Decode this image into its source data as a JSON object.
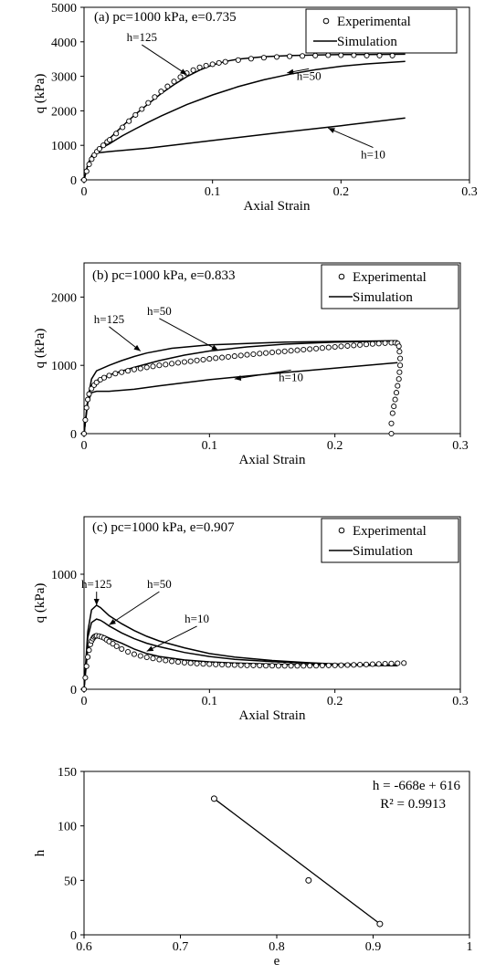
{
  "chart_data": [
    {
      "type": "line",
      "panel": "a",
      "title": "(a) pc=1000 kPa, e=0.735",
      "xlabel": "Axial Strain",
      "ylabel": "q (kPa)",
      "xlim": [
        0,
        0.3
      ],
      "ylim": [
        0,
        5000
      ],
      "xticks": [
        0,
        0.1,
        0.2,
        0.3
      ],
      "yticks": [
        0,
        1000,
        2000,
        3000,
        4000,
        5000
      ],
      "legend": {
        "placement": "top-right",
        "entries": [
          "Experimental",
          "Simulation"
        ]
      },
      "experimental": {
        "name": "Experimental",
        "x": [
          0.0,
          0.002,
          0.004,
          0.006,
          0.008,
          0.01,
          0.012,
          0.015,
          0.018,
          0.02,
          0.025,
          0.03,
          0.035,
          0.04,
          0.045,
          0.05,
          0.055,
          0.06,
          0.065,
          0.07,
          0.075,
          0.08,
          0.085,
          0.09,
          0.095,
          0.1,
          0.105,
          0.11,
          0.12,
          0.13,
          0.14,
          0.15,
          0.16,
          0.17,
          0.18,
          0.19,
          0.2,
          0.21,
          0.22,
          0.23,
          0.24
        ],
        "y": [
          0,
          250,
          450,
          600,
          720,
          820,
          900,
          1000,
          1100,
          1160,
          1340,
          1520,
          1700,
          1880,
          2050,
          2230,
          2400,
          2560,
          2710,
          2850,
          2980,
          3090,
          3180,
          3260,
          3310,
          3350,
          3390,
          3420,
          3470,
          3510,
          3540,
          3560,
          3580,
          3590,
          3600,
          3610,
          3610,
          3610,
          3600,
          3600,
          3600
        ]
      },
      "simulation": [
        {
          "label": "h=125",
          "x": [
            0,
            0.003,
            0.006,
            0.01,
            0.02,
            0.03,
            0.04,
            0.05,
            0.06,
            0.07,
            0.08,
            0.09,
            0.1,
            0.11,
            0.12,
            0.14,
            0.16,
            0.18,
            0.2,
            0.22,
            0.25
          ],
          "y": [
            0,
            450,
            700,
            850,
            1200,
            1560,
            1900,
            2200,
            2500,
            2760,
            2990,
            3180,
            3330,
            3430,
            3500,
            3570,
            3600,
            3620,
            3630,
            3630,
            3640
          ]
        },
        {
          "label": "h=50",
          "x": [
            0,
            0.003,
            0.006,
            0.01,
            0.02,
            0.03,
            0.04,
            0.05,
            0.06,
            0.08,
            0.1,
            0.12,
            0.14,
            0.16,
            0.18,
            0.2,
            0.22,
            0.25
          ],
          "y": [
            0,
            450,
            700,
            850,
            1050,
            1280,
            1480,
            1670,
            1850,
            2180,
            2460,
            2700,
            2900,
            3060,
            3190,
            3290,
            3360,
            3430
          ]
        },
        {
          "label": "h=10",
          "x": [
            0,
            0.003,
            0.006,
            0.01,
            0.02,
            0.05,
            0.1,
            0.15,
            0.2,
            0.25
          ],
          "y": [
            0,
            450,
            680,
            780,
            820,
            920,
            1140,
            1360,
            1570,
            1790
          ]
        }
      ],
      "annotations": [
        {
          "text": "h=125",
          "text_at": [
            0.045,
            4020
          ],
          "arrow_to": [
            0.08,
            3050
          ]
        },
        {
          "text": "h=50",
          "text_at": [
            0.175,
            2900
          ],
          "arrow_to": [
            0.158,
            3100
          ]
        },
        {
          "text": "h=10",
          "text_at": [
            0.225,
            620
          ],
          "arrow_to": [
            0.19,
            1500
          ]
        }
      ]
    },
    {
      "type": "line",
      "panel": "b",
      "title": "(b) pc=1000 kPa, e=0.833",
      "xlabel": "Axial Strain",
      "ylabel": "q (kPa)",
      "xlim": [
        0,
        0.3
      ],
      "ylim": [
        0,
        2500
      ],
      "xticks": [
        0,
        0.1,
        0.2,
        0.3
      ],
      "yticks": [
        0,
        1000,
        2000
      ],
      "legend": {
        "placement": "top-right",
        "entries": [
          "Experimental",
          "Simulation"
        ]
      },
      "experimental": {
        "name": "Experimental",
        "x": [
          0.0,
          0.001,
          0.002,
          0.003,
          0.004,
          0.006,
          0.008,
          0.01,
          0.013,
          0.016,
          0.02,
          0.025,
          0.03,
          0.035,
          0.04,
          0.045,
          0.05,
          0.055,
          0.06,
          0.065,
          0.07,
          0.075,
          0.08,
          0.085,
          0.09,
          0.095,
          0.1,
          0.105,
          0.11,
          0.115,
          0.12,
          0.125,
          0.13,
          0.135,
          0.14,
          0.145,
          0.15,
          0.155,
          0.16,
          0.165,
          0.17,
          0.175,
          0.18,
          0.185,
          0.19,
          0.195,
          0.2,
          0.205,
          0.21,
          0.215,
          0.22,
          0.225,
          0.23,
          0.235,
          0.24,
          0.245,
          0.248,
          0.25,
          0.251,
          0.2515,
          0.252,
          0.252,
          0.2515,
          0.251,
          0.25,
          0.249,
          0.248,
          0.247,
          0.246,
          0.245,
          0.245
        ],
        "y": [
          0,
          200,
          380,
          500,
          580,
          660,
          710,
          750,
          790,
          820,
          850,
          880,
          900,
          920,
          940,
          955,
          970,
          985,
          1000,
          1012,
          1025,
          1037,
          1050,
          1060,
          1072,
          1083,
          1095,
          1105,
          1115,
          1125,
          1135,
          1145,
          1155,
          1163,
          1172,
          1180,
          1190,
          1198,
          1206,
          1214,
          1222,
          1230,
          1238,
          1246,
          1254,
          1262,
          1270,
          1278,
          1285,
          1292,
          1300,
          1307,
          1314,
          1320,
          1326,
          1330,
          1330,
          1320,
          1280,
          1200,
          1100,
          1000,
          900,
          800,
          700,
          600,
          500,
          400,
          300,
          150,
          0
        ]
      },
      "simulation": [
        {
          "label": "h=125",
          "x": [
            0,
            0.003,
            0.006,
            0.01,
            0.02,
            0.03,
            0.04,
            0.05,
            0.07,
            0.1,
            0.13,
            0.16,
            0.2,
            0.25
          ],
          "y": [
            0,
            500,
            800,
            920,
            1000,
            1070,
            1130,
            1180,
            1250,
            1300,
            1320,
            1340,
            1350,
            1360
          ]
        },
        {
          "label": "h=50",
          "x": [
            0,
            0.003,
            0.006,
            0.01,
            0.02,
            0.04,
            0.06,
            0.08,
            0.1,
            0.13,
            0.16,
            0.2,
            0.25
          ],
          "y": [
            0,
            500,
            700,
            780,
            860,
            970,
            1070,
            1150,
            1210,
            1270,
            1310,
            1340,
            1360
          ]
        },
        {
          "label": "h=10",
          "x": [
            0,
            0.003,
            0.006,
            0.01,
            0.02,
            0.04,
            0.06,
            0.1,
            0.15,
            0.2,
            0.25
          ],
          "y": [
            0,
            450,
            600,
            620,
            620,
            650,
            700,
            790,
            880,
            960,
            1040
          ]
        }
      ],
      "annotations": [
        {
          "text": "h=125",
          "text_at": [
            0.02,
            1620
          ],
          "arrow_to": [
            0.045,
            1210
          ]
        },
        {
          "text": "h=50",
          "text_at": [
            0.06,
            1740
          ],
          "arrow_to": [
            0.107,
            1220
          ]
        },
        {
          "text": "h=10",
          "text_at": [
            0.165,
            770
          ],
          "arrow_to": [
            0.12,
            800
          ]
        }
      ]
    },
    {
      "type": "line",
      "panel": "c",
      "title": "(c) pc=1000 kPa, e=0.907",
      "xlabel": "Axial Strain",
      "ylabel": "q (kPa)",
      "xlim": [
        0,
        0.3
      ],
      "ylim": [
        0,
        1500
      ],
      "xticks": [
        0,
        0.1,
        0.2,
        0.3
      ],
      "yticks": [
        0,
        1000
      ],
      "legend": {
        "placement": "top-right",
        "entries": [
          "Experimental",
          "Simulation"
        ]
      },
      "experimental": {
        "name": "Experimental",
        "x": [
          0.0,
          0.001,
          0.002,
          0.003,
          0.004,
          0.005,
          0.006,
          0.007,
          0.008,
          0.009,
          0.01,
          0.012,
          0.014,
          0.016,
          0.018,
          0.02,
          0.023,
          0.026,
          0.03,
          0.035,
          0.04,
          0.045,
          0.05,
          0.055,
          0.06,
          0.065,
          0.07,
          0.075,
          0.08,
          0.085,
          0.09,
          0.095,
          0.1,
          0.105,
          0.11,
          0.115,
          0.12,
          0.125,
          0.13,
          0.135,
          0.14,
          0.145,
          0.15,
          0.155,
          0.16,
          0.165,
          0.17,
          0.175,
          0.18,
          0.185,
          0.19,
          0.195,
          0.2,
          0.205,
          0.21,
          0.215,
          0.22,
          0.225,
          0.23,
          0.235,
          0.24,
          0.245,
          0.25,
          0.255
        ],
        "y": [
          0,
          100,
          200,
          280,
          340,
          390,
          420,
          440,
          455,
          462,
          465,
          462,
          455,
          445,
          430,
          415,
          395,
          375,
          350,
          325,
          305,
          290,
          278,
          268,
          258,
          250,
          243,
          237,
          232,
          228,
          224,
          221,
          218,
          216,
          214,
          212,
          210,
          209,
          208,
          207,
          206,
          205,
          205,
          204,
          204,
          204,
          204,
          204,
          205,
          205,
          206,
          207,
          208,
          209,
          210,
          212,
          214,
          216,
          218,
          220,
          222,
          224,
          226,
          228
        ]
      },
      "simulation": [
        {
          "label": "h=125",
          "x": [
            0,
            0.003,
            0.006,
            0.01,
            0.013,
            0.016,
            0.02,
            0.03,
            0.04,
            0.05,
            0.06,
            0.08,
            0.1,
            0.12,
            0.15,
            0.18,
            0.2,
            0.25
          ],
          "y": [
            0,
            500,
            690,
            730,
            710,
            680,
            640,
            570,
            510,
            460,
            420,
            360,
            310,
            280,
            250,
            230,
            220,
            210
          ]
        },
        {
          "label": "h=50",
          "x": [
            0,
            0.003,
            0.006,
            0.01,
            0.013,
            0.016,
            0.02,
            0.03,
            0.04,
            0.05,
            0.06,
            0.08,
            0.1,
            0.12,
            0.15,
            0.18,
            0.2,
            0.25
          ],
          "y": [
            0,
            450,
            580,
            610,
            600,
            580,
            550,
            490,
            440,
            400,
            370,
            320,
            285,
            260,
            240,
            225,
            215,
            210
          ]
        },
        {
          "label": "h=10",
          "x": [
            0,
            0.003,
            0.006,
            0.01,
            0.013,
            0.016,
            0.02,
            0.03,
            0.04,
            0.05,
            0.06,
            0.08,
            0.1,
            0.12,
            0.15,
            0.18,
            0.2,
            0.25
          ],
          "y": [
            0,
            350,
            450,
            480,
            475,
            465,
            445,
            400,
            350,
            310,
            285,
            255,
            238,
            228,
            218,
            212,
            210,
            205
          ]
        }
      ],
      "annotations": [
        {
          "text": "h=125",
          "text_at": [
            0.01,
            880
          ],
          "arrow_to": [
            0.01,
            730
          ]
        },
        {
          "text": "h=50",
          "text_at": [
            0.06,
            880
          ],
          "arrow_to": [
            0.02,
            560
          ]
        },
        {
          "text": "h=10",
          "text_at": [
            0.09,
            580
          ],
          "arrow_to": [
            0.05,
            330
          ]
        }
      ]
    },
    {
      "type": "scatter",
      "panel": "d",
      "xlabel": "e",
      "ylabel": "h",
      "xlim": [
        0.6,
        1
      ],
      "ylim": [
        0,
        150
      ],
      "xticks": [
        0.6,
        0.7,
        0.8,
        0.9,
        1
      ],
      "yticks": [
        0,
        50,
        100,
        150
      ],
      "points": {
        "x": [
          0.735,
          0.833,
          0.907
        ],
        "y": [
          125,
          50,
          10
        ]
      },
      "trendline": {
        "equation": "h = -668e + 616",
        "r2": "R² = 0.9913",
        "slope": -668,
        "intercept": 616,
        "x_range": [
          0.735,
          0.907
        ]
      }
    }
  ]
}
